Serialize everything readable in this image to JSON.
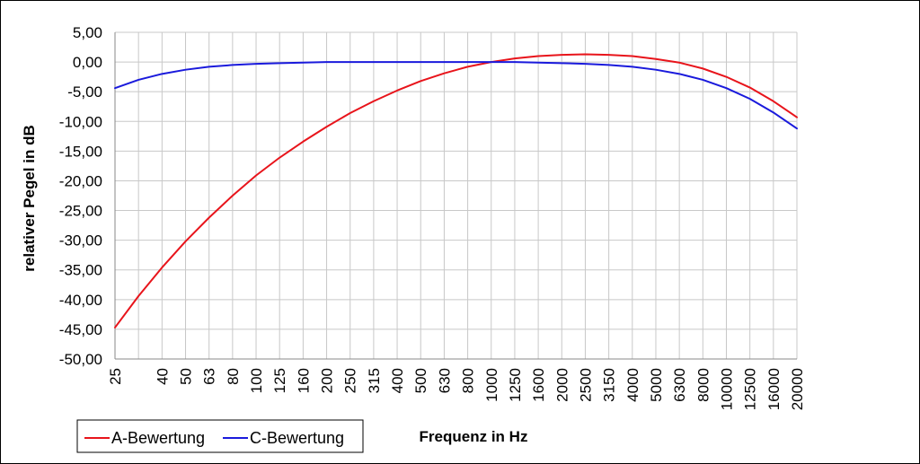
{
  "chart_data": {
    "type": "line",
    "title": "",
    "xlabel": "Frequenz in Hz",
    "ylabel": "relativer Pegel in dB",
    "x_categories": [
      "25",
      "",
      "40",
      "50",
      "63",
      "80",
      "100",
      "125",
      "160",
      "200",
      "250",
      "315",
      "400",
      "500",
      "630",
      "800",
      "1000",
      "1250",
      "1600",
      "2000",
      "2500",
      "3150",
      "4000",
      "5000",
      "6300",
      "8000",
      "10000",
      "12500",
      "16000",
      "20000"
    ],
    "ylim": [
      -50,
      5
    ],
    "y_ticks": [
      "5,00",
      "0,00",
      "-5,00",
      "-10,00",
      "-15,00",
      "-20,00",
      "-25,00",
      "-30,00",
      "-35,00",
      "-40,00",
      "-45,00",
      "-50,00"
    ],
    "grid": true,
    "legend_position": "bottom-left",
    "series": [
      {
        "name": "A-Bewertung",
        "color": "#e8141b",
        "values": [
          -44.7,
          -39.4,
          -34.6,
          -30.2,
          -26.2,
          -22.5,
          -19.1,
          -16.1,
          -13.4,
          -10.9,
          -8.6,
          -6.6,
          -4.8,
          -3.2,
          -1.9,
          -0.8,
          0.0,
          0.6,
          1.0,
          1.2,
          1.3,
          1.2,
          1.0,
          0.5,
          -0.1,
          -1.1,
          -2.5,
          -4.3,
          -6.6,
          -9.3
        ]
      },
      {
        "name": "C-Bewertung",
        "color": "#1a1adc",
        "values": [
          -4.4,
          -3.0,
          -2.0,
          -1.3,
          -0.8,
          -0.5,
          -0.3,
          -0.2,
          -0.1,
          0.0,
          0.0,
          0.0,
          0.0,
          0.0,
          0.0,
          0.0,
          0.0,
          0.0,
          -0.1,
          -0.2,
          -0.3,
          -0.5,
          -0.8,
          -1.3,
          -2.0,
          -3.0,
          -4.4,
          -6.2,
          -8.5,
          -11.2
        ]
      }
    ]
  }
}
